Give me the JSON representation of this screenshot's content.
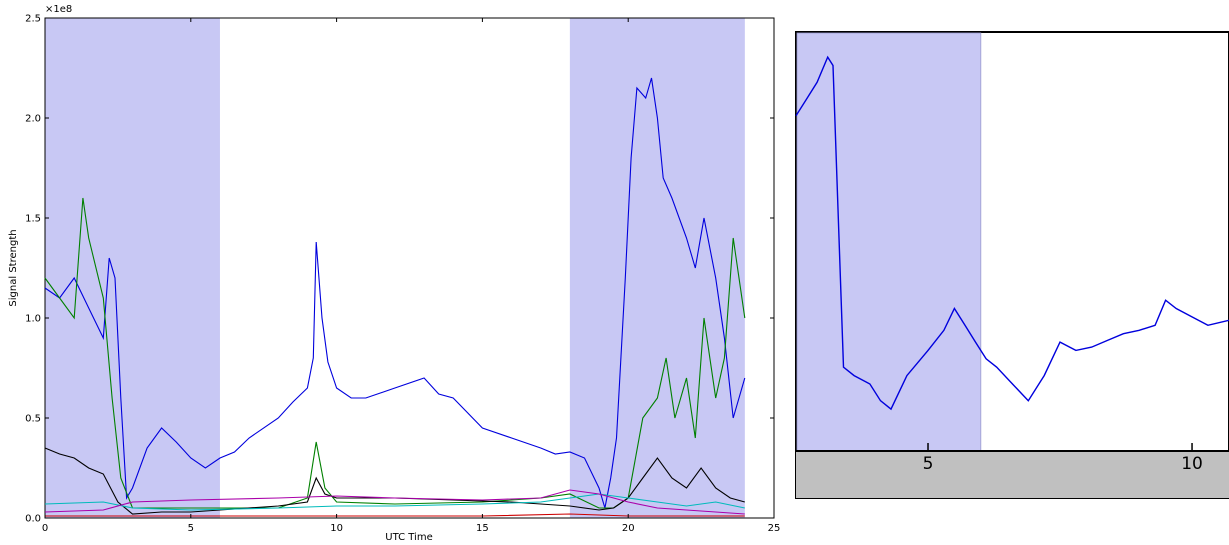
{
  "chart_data": [
    {
      "type": "line",
      "xlabel": "UTC Time",
      "ylabel": "Signal Strength",
      "y_multiplier": "×1e8",
      "xlim": [
        0,
        25
      ],
      "ylim": [
        0,
        2.5
      ],
      "x_ticks": [
        "0",
        "5",
        "10",
        "15",
        "20",
        "25"
      ],
      "y_ticks": [
        "0.0",
        "0.5",
        "1.0",
        "1.5",
        "2.0",
        "2.5"
      ],
      "grid": false,
      "shaded_regions": [
        [
          0,
          6
        ],
        [
          18,
          24
        ]
      ],
      "series": [
        {
          "color": "#0000dd",
          "x": [
            0,
            0.5,
            1,
            1.5,
            2,
            2.2,
            2.4,
            2.6,
            2.8,
            3,
            3.5,
            4,
            4.5,
            5,
            5.5,
            6,
            6.5,
            7,
            8,
            8.5,
            9,
            9.2,
            9.3,
            9.5,
            9.7,
            10,
            10.5,
            11,
            12,
            13,
            13.5,
            14,
            15,
            16,
            17,
            17.5,
            18,
            18.5,
            19,
            19.2,
            19.4,
            19.6,
            19.9,
            20.1,
            20.3,
            20.6,
            20.8,
            21,
            21.2,
            21.5,
            22,
            22.3,
            22.6,
            23,
            23.3,
            23.6,
            24
          ],
          "y": [
            115000000.0,
            110000000.0,
            120000000.0,
            105000000.0,
            90000000.0,
            130000000.0,
            120000000.0,
            60000000.0,
            10000000.0,
            15000000.0,
            35000000.0,
            45000000.0,
            38000000.0,
            30000000.0,
            25000000.0,
            30000000.0,
            33000000.0,
            40000000.0,
            50000000.0,
            58000000.0,
            65000000.0,
            80000000.0,
            138000000.0,
            100000000.0,
            78000000.0,
            65000000.0,
            60000000.0,
            60000000.0,
            65000000.0,
            70000000.0,
            62000000.0,
            60000000.0,
            45000000.0,
            40000000.0,
            35000000.0,
            32000000.0,
            33000000.0,
            30000000.0,
            15000000.0,
            5000000.0,
            20000000.0,
            40000000.0,
            120000000.0,
            180000000.0,
            215000000.0,
            210000000.0,
            220000000.0,
            200000000.0,
            170000000.0,
            160000000.0,
            140000000.0,
            125000000.0,
            150000000.0,
            120000000.0,
            90000000.0,
            50000000.0,
            70000000.0
          ]
        },
        {
          "color": "#008000",
          "x": [
            0,
            0.5,
            1,
            1.3,
            1.5,
            2,
            2.3,
            2.6,
            3,
            4,
            5,
            6,
            8,
            9,
            9.3,
            9.6,
            10,
            12,
            15,
            17,
            18,
            19,
            19.5,
            20,
            20.5,
            21,
            21.3,
            21.6,
            22,
            22.3,
            22.6,
            23,
            23.3,
            23.6,
            24
          ],
          "y": [
            120000000.0,
            110000000.0,
            100000000.0,
            160000000.0,
            140000000.0,
            110000000.0,
            60000000.0,
            20000000.0,
            5000000.0,
            5000000.0,
            5000000.0,
            5000000.0,
            5000000.0,
            10000000.0,
            38000000.0,
            15000000.0,
            8000000.0,
            7000000.0,
            8000000.0,
            10000000.0,
            12000000.0,
            5000000.0,
            5000000.0,
            10000000.0,
            50000000.0,
            60000000.0,
            80000000.0,
            50000000.0,
            70000000.0,
            40000000.0,
            100000000.0,
            60000000.0,
            80000000.0,
            140000000.0,
            100000000.0
          ]
        },
        {
          "color": "#000000",
          "x": [
            0,
            0.5,
            1,
            1.5,
            2,
            2.5,
            3,
            4,
            5,
            6,
            8,
            9,
            9.3,
            9.6,
            10,
            12,
            14,
            16,
            17,
            18,
            19,
            19.5,
            20,
            20.5,
            21,
            21.5,
            22,
            22.5,
            23,
            23.5,
            24
          ],
          "y": [
            35000000.0,
            32000000.0,
            30000000.0,
            25000000.0,
            22000000.0,
            8000000.0,
            2000000.0,
            3000000.0,
            3000000.0,
            4000000.0,
            6000000.0,
            8000000.0,
            20000000.0,
            12000000.0,
            10000000.0,
            10000000.0,
            9000000.0,
            8000000.0,
            7000000.0,
            6000000.0,
            4000000.0,
            5000000.0,
            10000000.0,
            20000000.0,
            30000000.0,
            20000000.0,
            15000000.0,
            25000000.0,
            15000000.0,
            10000000.0,
            8000000.0
          ]
        },
        {
          "color": "#00bbbb",
          "x": [
            0,
            2,
            3,
            5,
            8,
            10,
            12,
            15,
            17,
            18,
            19,
            20,
            21,
            22,
            23,
            24
          ],
          "y": [
            7000000.0,
            8000000.0,
            5000000.0,
            4000000.0,
            5000000.0,
            6000000.0,
            6000000.0,
            7000000.0,
            8000000.0,
            10000000.0,
            12000000.0,
            10000000.0,
            8000000.0,
            6000000.0,
            8000000.0,
            5000000.0
          ]
        },
        {
          "color": "#aa00aa",
          "x": [
            0,
            2,
            3,
            5,
            8,
            10,
            12,
            15,
            17,
            18,
            19,
            20,
            21,
            22,
            23,
            24
          ],
          "y": [
            3000000.0,
            4000000.0,
            8000000.0,
            9000000.0,
            10000000.0,
            11000000.0,
            10000000.0,
            9000000.0,
            10000000.0,
            14000000.0,
            12000000.0,
            8000000.0,
            5000000.0,
            4000000.0,
            3000000.0,
            2000000.0
          ]
        },
        {
          "color": "#cc0000",
          "x": [
            0,
            5,
            10,
            15,
            18,
            20,
            24
          ],
          "y": [
            1000000.0,
            1000000.0,
            1000000.0,
            1000000.0,
            2000000.0,
            1000000.0,
            1000000.0
          ]
        }
      ]
    },
    {
      "type": "line",
      "xlim": [
        2.5,
        10.7
      ],
      "ylim": [
        0,
        2.5
      ],
      "x_ticks": [
        "5",
        "10"
      ],
      "grid": false,
      "shaded_regions": [
        [
          2.5,
          6
        ]
      ],
      "series": [
        {
          "color": "#0000dd",
          "x": [
            2.5,
            2.7,
            2.9,
            3.1,
            3.2,
            3.4,
            3.6,
            3.9,
            4.1,
            4.3,
            4.6,
            5,
            5.3,
            5.5,
            5.7,
            5.9,
            6.1,
            6.3,
            6.6,
            6.9,
            7.2,
            7.5,
            7.8,
            8.1,
            8.4,
            8.7,
            9,
            9.3,
            9.5,
            9.7,
            10,
            10.3,
            10.7
          ],
          "y": [
            200000000.0,
            210000000.0,
            220000000.0,
            235000000.0,
            230000000.0,
            50000000.0,
            45000000.0,
            40000000.0,
            30000000.0,
            25000000.0,
            45000000.0,
            60000000.0,
            72000000.0,
            85000000.0,
            75000000.0,
            65000000.0,
            55000000.0,
            50000000.0,
            40000000.0,
            30000000.0,
            45000000.0,
            65000000.0,
            60000000.0,
            62000000.0,
            66000000.0,
            70000000.0,
            72000000.0,
            75000000.0,
            90000000.0,
            85000000.0,
            80000000.0,
            75000000.0,
            78000000.0
          ]
        }
      ]
    }
  ]
}
